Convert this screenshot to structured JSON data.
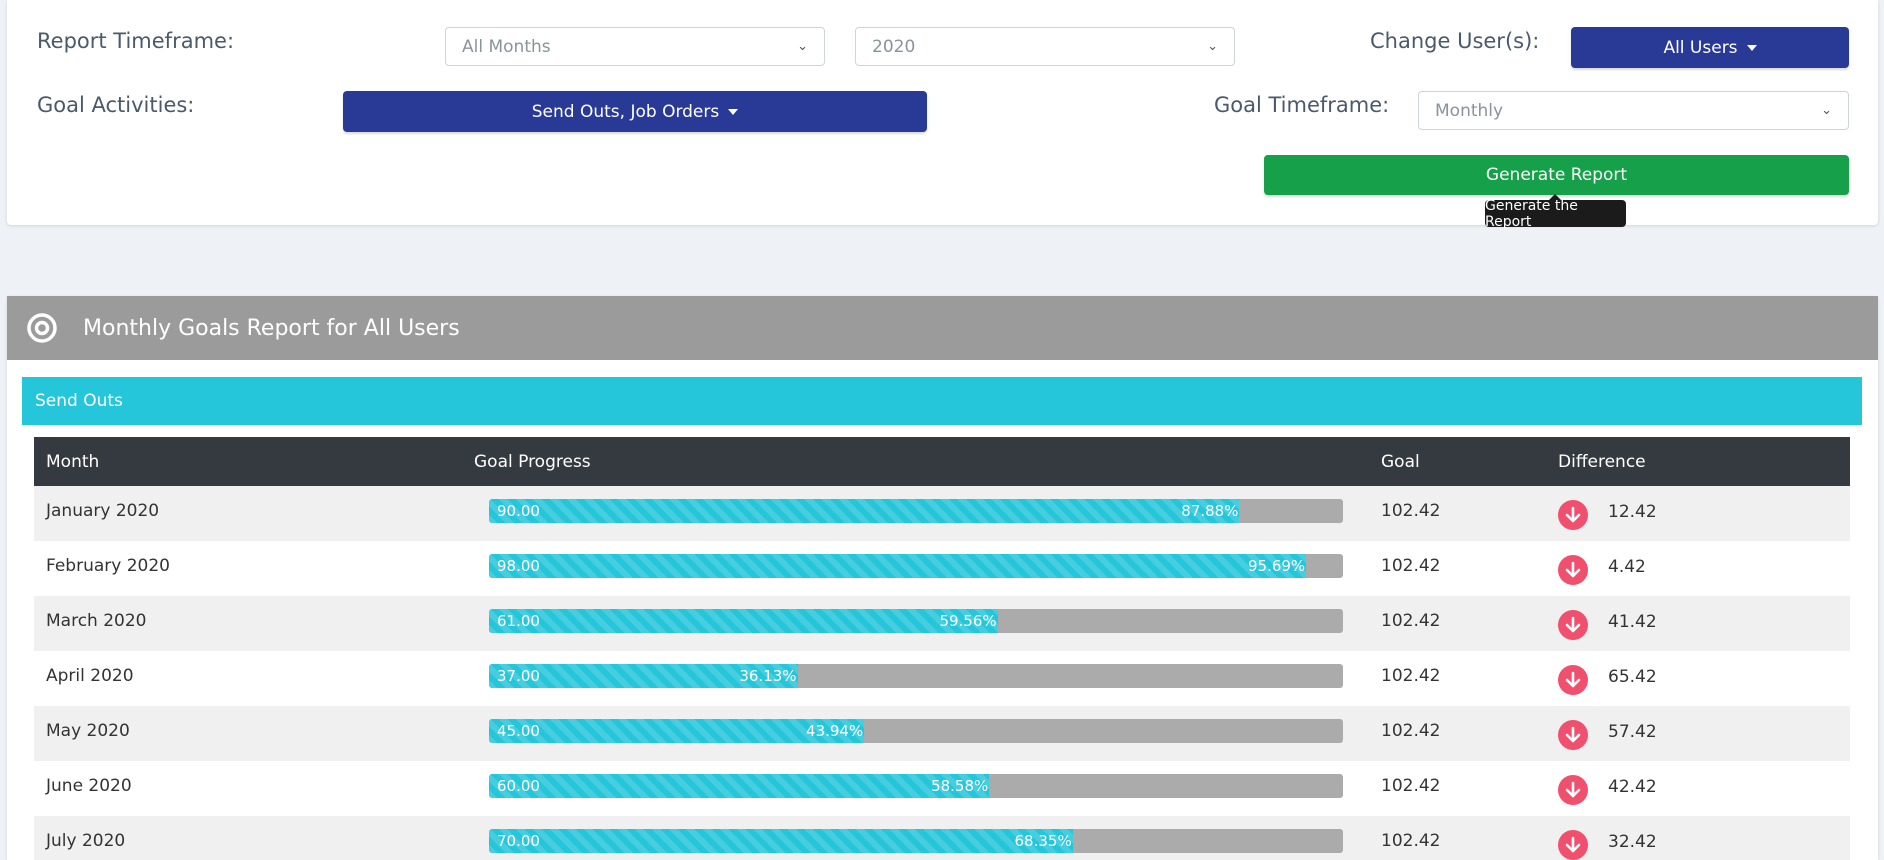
{
  "filters": {
    "report_timeframe_label": "Report Timeframe:",
    "month_select": "All Months",
    "year_select": "2020",
    "change_users_label": "Change User(s):",
    "users_button": "All Users",
    "goal_activities_label": "Goal Activities:",
    "activities_button": "Send Outs, Job Orders",
    "goal_timeframe_label": "Goal Timeframe:",
    "goal_timeframe_select": "Monthly",
    "generate_button": "Generate Report",
    "generate_tooltip": "Generate the Report"
  },
  "report": {
    "title": "Monthly Goals Report for All Users",
    "icon": "target-icon",
    "section": "Send Outs",
    "columns": {
      "month": "Month",
      "progress": "Goal Progress",
      "goal": "Goal",
      "difference": "Difference"
    },
    "rows": [
      {
        "month": "January 2020",
        "value": "90.00",
        "percent": "87.88%",
        "progress": 0.8788,
        "goal": "102.42",
        "difference": "12.42"
      },
      {
        "month": "February 2020",
        "value": "98.00",
        "percent": "95.69%",
        "progress": 0.9569,
        "goal": "102.42",
        "difference": "4.42"
      },
      {
        "month": "March 2020",
        "value": "61.00",
        "percent": "59.56%",
        "progress": 0.5956,
        "goal": "102.42",
        "difference": "41.42"
      },
      {
        "month": "April 2020",
        "value": "37.00",
        "percent": "36.13%",
        "progress": 0.3613,
        "goal": "102.42",
        "difference": "65.42"
      },
      {
        "month": "May 2020",
        "value": "45.00",
        "percent": "43.94%",
        "progress": 0.4394,
        "goal": "102.42",
        "difference": "57.42"
      },
      {
        "month": "June 2020",
        "value": "60.00",
        "percent": "58.58%",
        "progress": 0.5858,
        "goal": "102.42",
        "difference": "42.42"
      },
      {
        "month": "July 2020",
        "value": "70.00",
        "percent": "68.35%",
        "progress": 0.6835,
        "goal": "102.42",
        "difference": "32.42"
      }
    ]
  },
  "colors": {
    "accent_navy": "#283a96",
    "accent_green": "#15a049",
    "section_cyan": "#26c6da",
    "down_red": "#f0506e"
  }
}
